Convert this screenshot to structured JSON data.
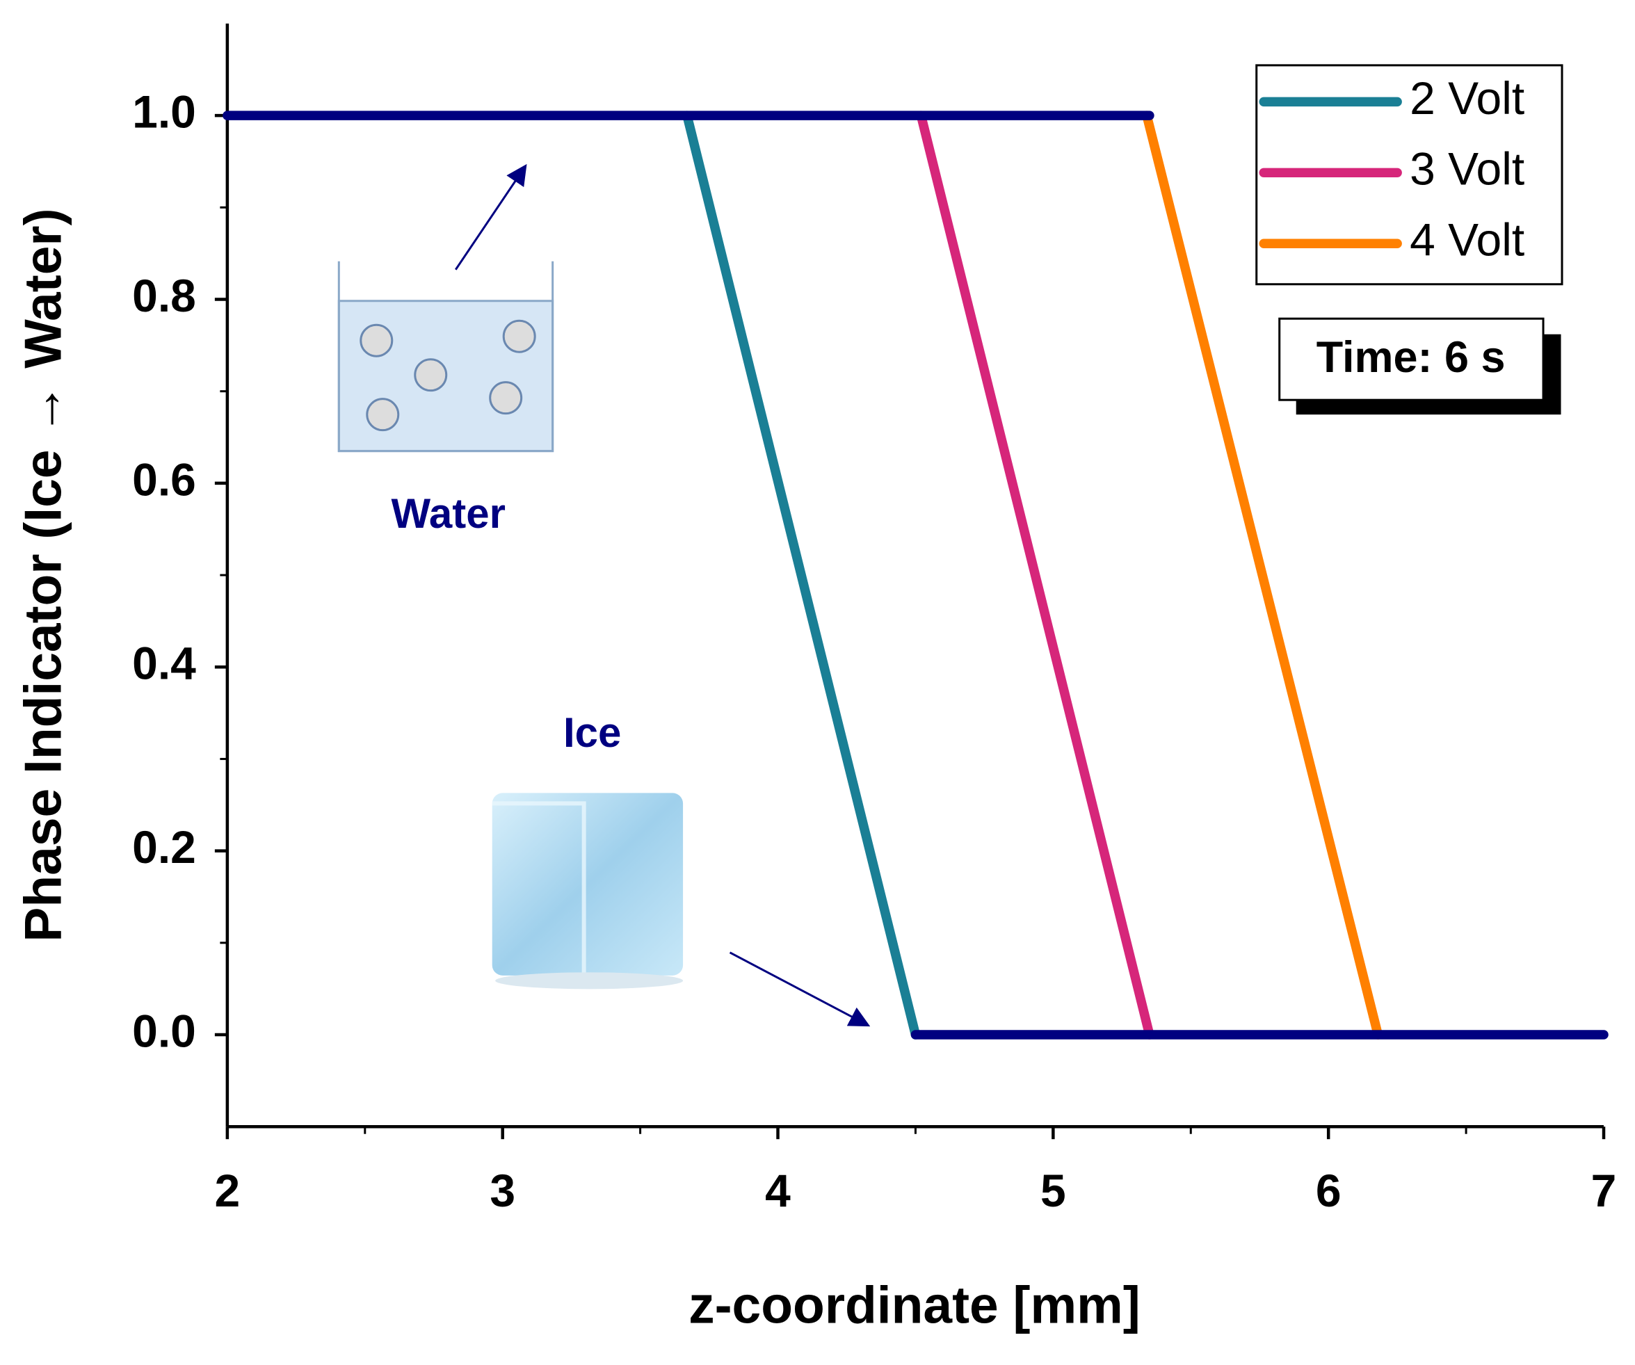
{
  "chart_data": {
    "type": "line",
    "x_label": "z-coordinate [mm]",
    "y_label": "Phase Indicator (Ice → Water)",
    "xlim": [
      2,
      7
    ],
    "ylim": [
      -0.1,
      1.1
    ],
    "xticks": [
      2,
      3,
      4,
      5,
      6,
      7
    ],
    "yticks": [
      {
        "value": 0,
        "label": "0.0"
      },
      0.2,
      0.4,
      0.6,
      0.8,
      {
        "value": 1,
        "label": "1.0"
      }
    ],
    "series": [
      {
        "name": "2 Volt",
        "color": "#1a7f95",
        "x": [
          3.67,
          4.5
        ],
        "values": [
          1,
          0
        ]
      },
      {
        "name": "3 Volt",
        "color": "#d6267a",
        "x": [
          4.52,
          5.35
        ],
        "values": [
          1,
          0
        ]
      },
      {
        "name": "4 Volt",
        "color": "#ff8000",
        "x": [
          5.34,
          6.18
        ],
        "values": [
          1,
          0
        ]
      },
      {
        "color": "#000080",
        "x": [
          2,
          5.35
        ],
        "values": [
          1,
          1
        ]
      },
      {
        "color": "#000080",
        "x": [
          4.5,
          7
        ],
        "values": [
          0,
          0
        ]
      }
    ],
    "legend_position": "upper right",
    "annotations": {
      "time": "Time: 6 s",
      "water": "Water",
      "ice": "Ice"
    }
  }
}
